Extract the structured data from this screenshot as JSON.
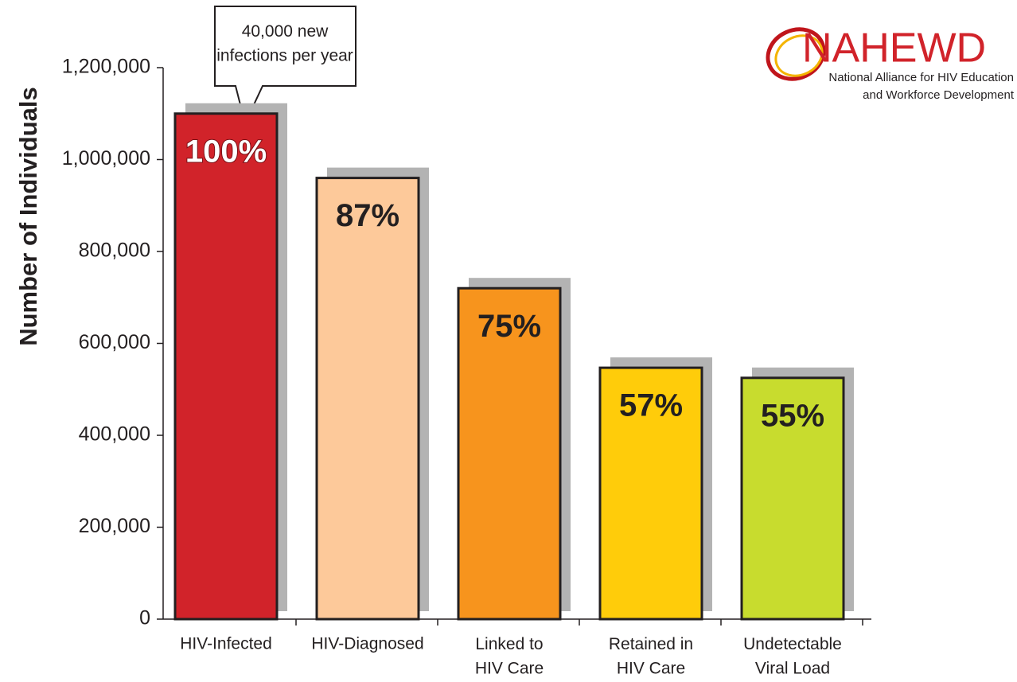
{
  "chart_data": {
    "type": "bar",
    "y_label": "Number of Individuals",
    "categories": [
      "HIV-Infected",
      "HIV-Diagnosed",
      "Linked to\nHIV Care",
      "Retained in\nHIV Care",
      "Undetectable\nViral Load"
    ],
    "values": [
      1100000,
      960000,
      720000,
      547000,
      525000
    ],
    "colors": [
      "#d1232a",
      "#fdc99a",
      "#f7941d",
      "#ffcc0a",
      "#c8dc2e"
    ],
    "shares": {
      "values": [
        100,
        87,
        75,
        57,
        55
      ],
      "value_labels": [
        "100%",
        "87%",
        "75%",
        "57%",
        "55%"
      ]
    },
    "ylim": [
      0,
      1200000
    ],
    "yticks": [
      0,
      {
        "value": 200000,
        "label": "200,000"
      },
      {
        "value": 400000,
        "label": "400,000"
      },
      {
        "value": 600000,
        "label": "600,000"
      },
      {
        "value": 800000,
        "label": "800,000"
      },
      {
        "value": 1000000,
        "label": "1,000,000"
      },
      {
        "value": 1200000,
        "label": "1,200,000"
      }
    ],
    "annotation": "40,000 new\ninfections per year",
    "logo": {
      "name": "NAHEWD",
      "subtitle": "National Alliance for HIV Education\nand Workforce Development"
    }
  }
}
